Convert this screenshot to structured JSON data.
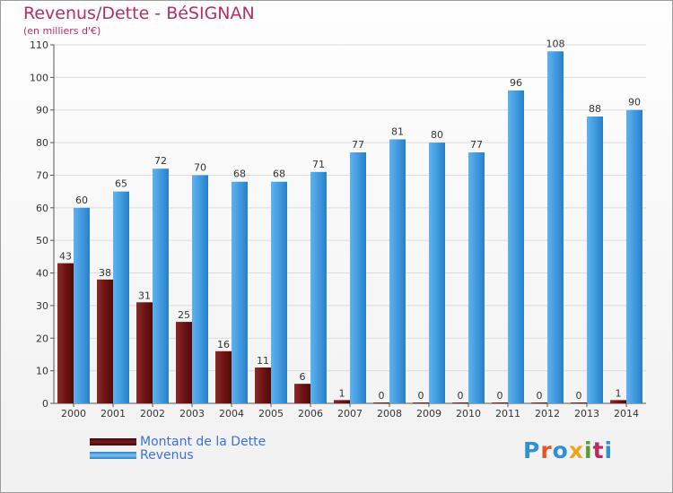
{
  "colors": {
    "debt": "#7b1c1c",
    "revenue": "#4ca3e5",
    "title": "#b0306a",
    "legend_text": "#3b6fe0"
  },
  "chart_data": {
    "type": "bar",
    "title": "Revenus/Dette - BéSIGNAN",
    "subtitle": "(en milliers d'€)",
    "categories": [
      "2000",
      "2001",
      "2002",
      "2003",
      "2004",
      "2005",
      "2006",
      "2007",
      "2008",
      "2009",
      "2010",
      "2011",
      "2012",
      "2013",
      "2014"
    ],
    "series": [
      {
        "name": "Montant de la Dette",
        "values": [
          43,
          38,
          31,
          25,
          16,
          11,
          6,
          1,
          0,
          0,
          0,
          0,
          0,
          0,
          1
        ]
      },
      {
        "name": "Revenus",
        "values": [
          60,
          65,
          72,
          70,
          68,
          68,
          71,
          77,
          81,
          80,
          77,
          96,
          108,
          88,
          90
        ]
      }
    ],
    "ylim": [
      0,
      110
    ],
    "yticks": [
      0,
      10,
      20,
      30,
      40,
      50,
      60,
      70,
      80,
      90,
      100,
      110
    ],
    "grid": true,
    "legend": "bottom-left"
  },
  "logo": {
    "text": "Proxiti"
  }
}
